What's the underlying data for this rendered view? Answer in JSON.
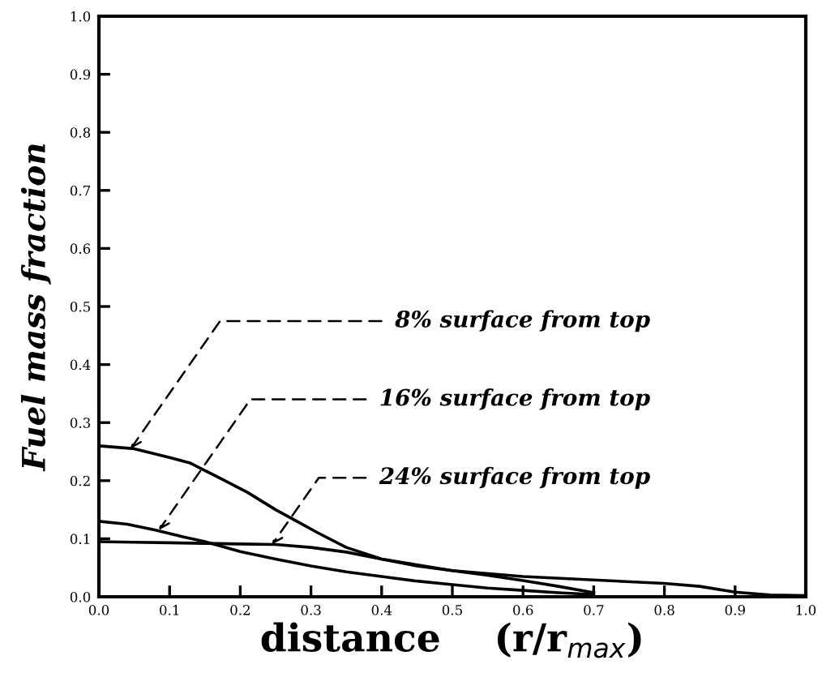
{
  "chart_data": {
    "type": "line",
    "xlabel": "distance    (r/r$_{max}$)",
    "ylabel": "Fuel mass fraction",
    "xlim": [
      0,
      1
    ],
    "ylim": [
      0,
      1
    ],
    "xticks": [
      {
        "value": 0,
        "label": "0.0"
      },
      0.1,
      0.2,
      0.3,
      0.4,
      0.5,
      0.6,
      0.7,
      0.8,
      0.9,
      {
        "value": 1,
        "label": "1.0"
      }
    ],
    "yticks": [
      {
        "value": 0,
        "label": "0.0"
      },
      0.1,
      0.2,
      0.3,
      0.4,
      0.5,
      0.6,
      0.7,
      0.8,
      0.9,
      {
        "value": 1,
        "label": "1.0"
      }
    ],
    "grid": false,
    "legend": false,
    "marker": "none",
    "line_style": "solid",
    "series": [
      {
        "color": "#000000",
        "x": [
          0,
          0.05,
          0.1,
          0.13,
          0.17,
          0.21,
          0.25,
          0.28,
          0.31,
          0.35,
          0.4,
          0.45,
          0.5,
          0.55,
          0.6,
          0.65,
          0.7
        ],
        "values": [
          0.26,
          0.255,
          0.24,
          0.23,
          0.205,
          0.18,
          0.15,
          0.13,
          0.11,
          0.085,
          0.065,
          0.053,
          0.045,
          0.037,
          0.028,
          0.018,
          0.007
        ]
      },
      {
        "color": "#000000",
        "x": [
          0,
          0.04,
          0.08,
          0.12,
          0.15,
          0.2,
          0.25,
          0.3,
          0.35,
          0.4,
          0.45,
          0.5,
          0.55,
          0.6,
          0.65,
          0.7
        ],
        "values": [
          0.13,
          0.125,
          0.115,
          0.103,
          0.095,
          0.078,
          0.065,
          0.053,
          0.043,
          0.035,
          0.027,
          0.021,
          0.015,
          0.011,
          0.007,
          0.004
        ]
      },
      {
        "color": "#000000",
        "x": [
          0,
          0.05,
          0.1,
          0.15,
          0.2,
          0.25,
          0.3,
          0.35,
          0.4,
          0.5,
          0.6,
          0.7,
          0.8,
          0.85,
          0.9,
          0.95,
          1.0
        ],
        "values": [
          0.095,
          0.094,
          0.093,
          0.092,
          0.091,
          0.09,
          0.085,
          0.077,
          0.065,
          0.045,
          0.035,
          0.029,
          0.023,
          0.018,
          0.008,
          0.003,
          0.002
        ]
      }
    ],
    "annotations": [
      {
        "text": "8% surface from top",
        "x": 0.045,
        "y": 0.255
      },
      {
        "text": "16% surface from top",
        "x": 0.085,
        "y": 0.115
      },
      {
        "text": "24% surface from top",
        "x": 0.245,
        "y": 0.09
      }
    ]
  }
}
